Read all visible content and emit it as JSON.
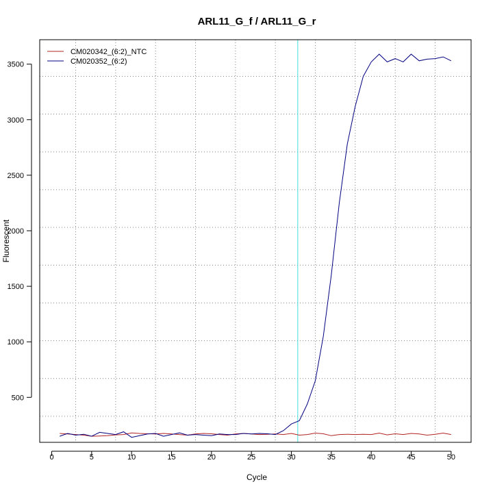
{
  "chart_data": {
    "type": "line",
    "title": "ARL11_G_f / ARL11_G_r",
    "xlabel": "Cycle",
    "ylabel": "Fluorescent",
    "xlim": [
      -1.5,
      52.5
    ],
    "ylim": [
      95,
      3720
    ],
    "x_ticks": [
      0,
      5,
      10,
      15,
      20,
      25,
      30,
      35,
      40,
      45,
      50
    ],
    "y_ticks": [
      500,
      1000,
      1500,
      2000,
      2500,
      3000,
      3500
    ],
    "x_grid": [
      3,
      8,
      13,
      18,
      23,
      28,
      33,
      38,
      43,
      48
    ],
    "y_grid": [
      330,
      670,
      1010,
      1350,
      1690,
      2030,
      2370,
      2710,
      3050,
      3390
    ],
    "grid": true,
    "legend_position": "top-left",
    "threshold": {
      "x": 30.8,
      "color": "#40e0e0"
    },
    "x": [
      1,
      2,
      3,
      4,
      5,
      6,
      7,
      8,
      9,
      10,
      11,
      12,
      13,
      14,
      15,
      16,
      17,
      18,
      19,
      20,
      21,
      22,
      23,
      24,
      25,
      26,
      27,
      28,
      29,
      30,
      31,
      32,
      33,
      34,
      35,
      36,
      37,
      38,
      39,
      40,
      41,
      42,
      43,
      44,
      45,
      46,
      47,
      48,
      49,
      50
    ],
    "series": [
      {
        "name": "CM020342_(6:2)_NTC",
        "color": "#b22222",
        "values": [
          175,
          170,
          165,
          160,
          150,
          152,
          155,
          162,
          165,
          180,
          175,
          172,
          170,
          175,
          170,
          165,
          160,
          170,
          175,
          172,
          165,
          160,
          170,
          175,
          170,
          165,
          168,
          170,
          165,
          175,
          160,
          165,
          178,
          172,
          155,
          165,
          168,
          165,
          168,
          165,
          178,
          162,
          172,
          165,
          175,
          170,
          160,
          168,
          178,
          165
        ]
      },
      {
        "name": "CM020352_(6:2)",
        "color": "#000080",
        "values": [
          150,
          175,
          160,
          168,
          150,
          185,
          175,
          165,
          190,
          140,
          155,
          170,
          175,
          150,
          165,
          180,
          160,
          165,
          160,
          155,
          170,
          165,
          165,
          175,
          170,
          175,
          172,
          165,
          200,
          260,
          290,
          440,
          650,
          1050,
          1600,
          2250,
          2780,
          3120,
          3390,
          3520,
          3590,
          3520,
          3550,
          3520,
          3590,
          3530,
          3545,
          3550,
          3565,
          3530
        ]
      }
    ]
  }
}
